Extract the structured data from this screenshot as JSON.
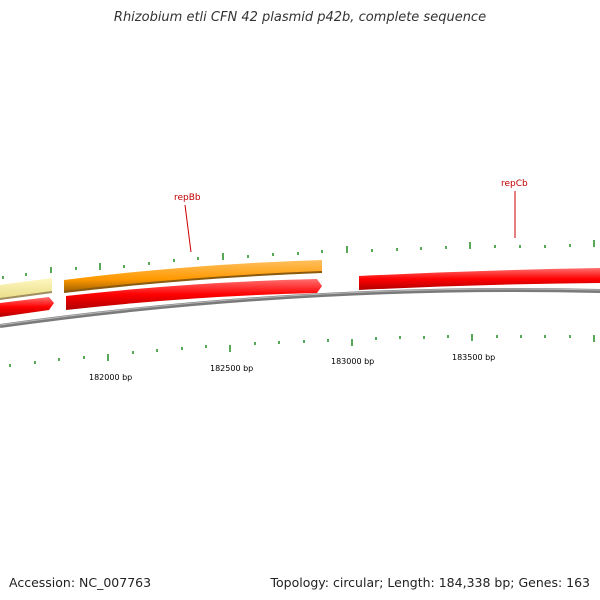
{
  "title": "Rhizobium etli CFN 42 plasmid p42b, complete sequence",
  "footer": {
    "accession": "Accession: NC_007763",
    "summary": "Topology: circular; Length: 184,338 bp; Genes: 163"
  },
  "colors": {
    "backbone": "#808080",
    "forward_gene": "#ff0000",
    "orange_gene": "#ff9900",
    "pale_gene": "#f0e68c",
    "tick": "#1f8a1f",
    "gene_label": "#cc0000"
  },
  "coordinate_labels": [
    "182000 bp",
    "182500 bp",
    "183000 bp",
    "183500 bp"
  ],
  "gene_labels": [
    {
      "name": "repBb"
    },
    {
      "name": "repCb"
    }
  ]
}
